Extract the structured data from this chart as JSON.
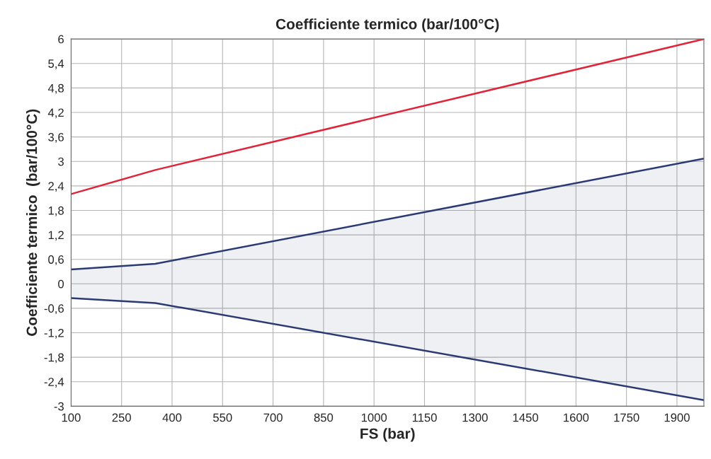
{
  "chart_data": {
    "type": "line",
    "title": "Coefficiente termico (bar/100°C)",
    "xlabel": "FS (bar)",
    "ylabel": "Coefficiente termico  (bar/100°C)",
    "x": [
      100,
      350,
      1980
    ],
    "series": [
      {
        "type": "area",
        "color": "#2b3a73",
        "values": [
          0.35,
          0.49,
          3.07
        ]
      },
      {
        "color": "#e0243a",
        "values": [
          2.2,
          2.79,
          6.0
        ]
      },
      {
        "type": "area",
        "color": "#2b3a73",
        "values": [
          -0.35,
          -0.47,
          -2.85
        ]
      }
    ],
    "xlim": [
      100,
      1980
    ],
    "xticks": [
      100,
      250,
      400,
      550,
      700,
      850,
      1000,
      1150,
      1300,
      1450,
      1600,
      1750,
      1900
    ],
    "ylim": [
      -3,
      6
    ],
    "yticks": [
      6,
      {
        "value": 5.4,
        "label": "5,4"
      },
      {
        "value": 4.8,
        "label": "4,8"
      },
      {
        "value": 4.2,
        "label": "4,2"
      },
      {
        "value": 3.6,
        "label": "3,6"
      },
      3,
      {
        "value": 2.4,
        "label": "2,4"
      },
      {
        "value": 1.8,
        "label": "1,8"
      },
      {
        "value": 1.2,
        "label": "1,2"
      },
      {
        "value": 0.6,
        "label": "0,6"
      },
      0,
      {
        "value": -0.6,
        "label": "-0,6"
      },
      {
        "value": -1.2,
        "label": "-1,2"
      },
      {
        "value": -1.8,
        "label": "-1,8"
      },
      {
        "value": -2.4,
        "label": "-2,4"
      },
      -3
    ],
    "grid": true
  }
}
